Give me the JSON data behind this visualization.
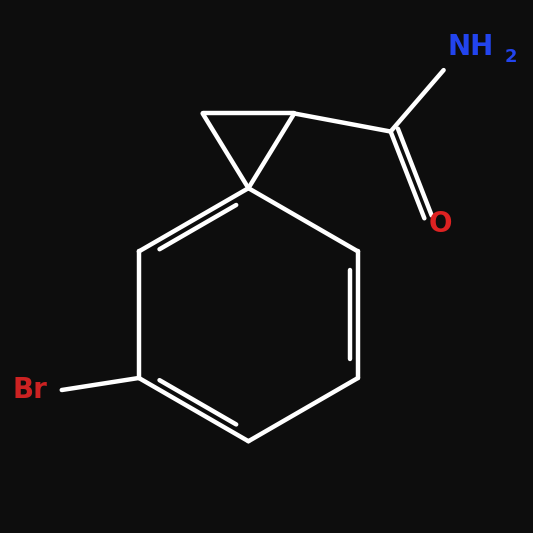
{
  "background_color": "#0d0d0d",
  "bond_color": "#ffffff",
  "bond_width": 3.2,
  "dbo": 0.07,
  "atom_labels": {
    "Br": {
      "color": "#cc2222",
      "fontsize": 20,
      "fontweight": "bold"
    },
    "O": {
      "color": "#dd2222",
      "fontsize": 20,
      "fontweight": "bold"
    },
    "NH": {
      "color": "#2244ee",
      "fontsize": 20,
      "fontweight": "bold"
    },
    "2": {
      "color": "#2244ee",
      "fontsize": 13,
      "fontweight": "bold"
    }
  },
  "figsize": [
    5.33,
    5.33
  ],
  "dpi": 100
}
